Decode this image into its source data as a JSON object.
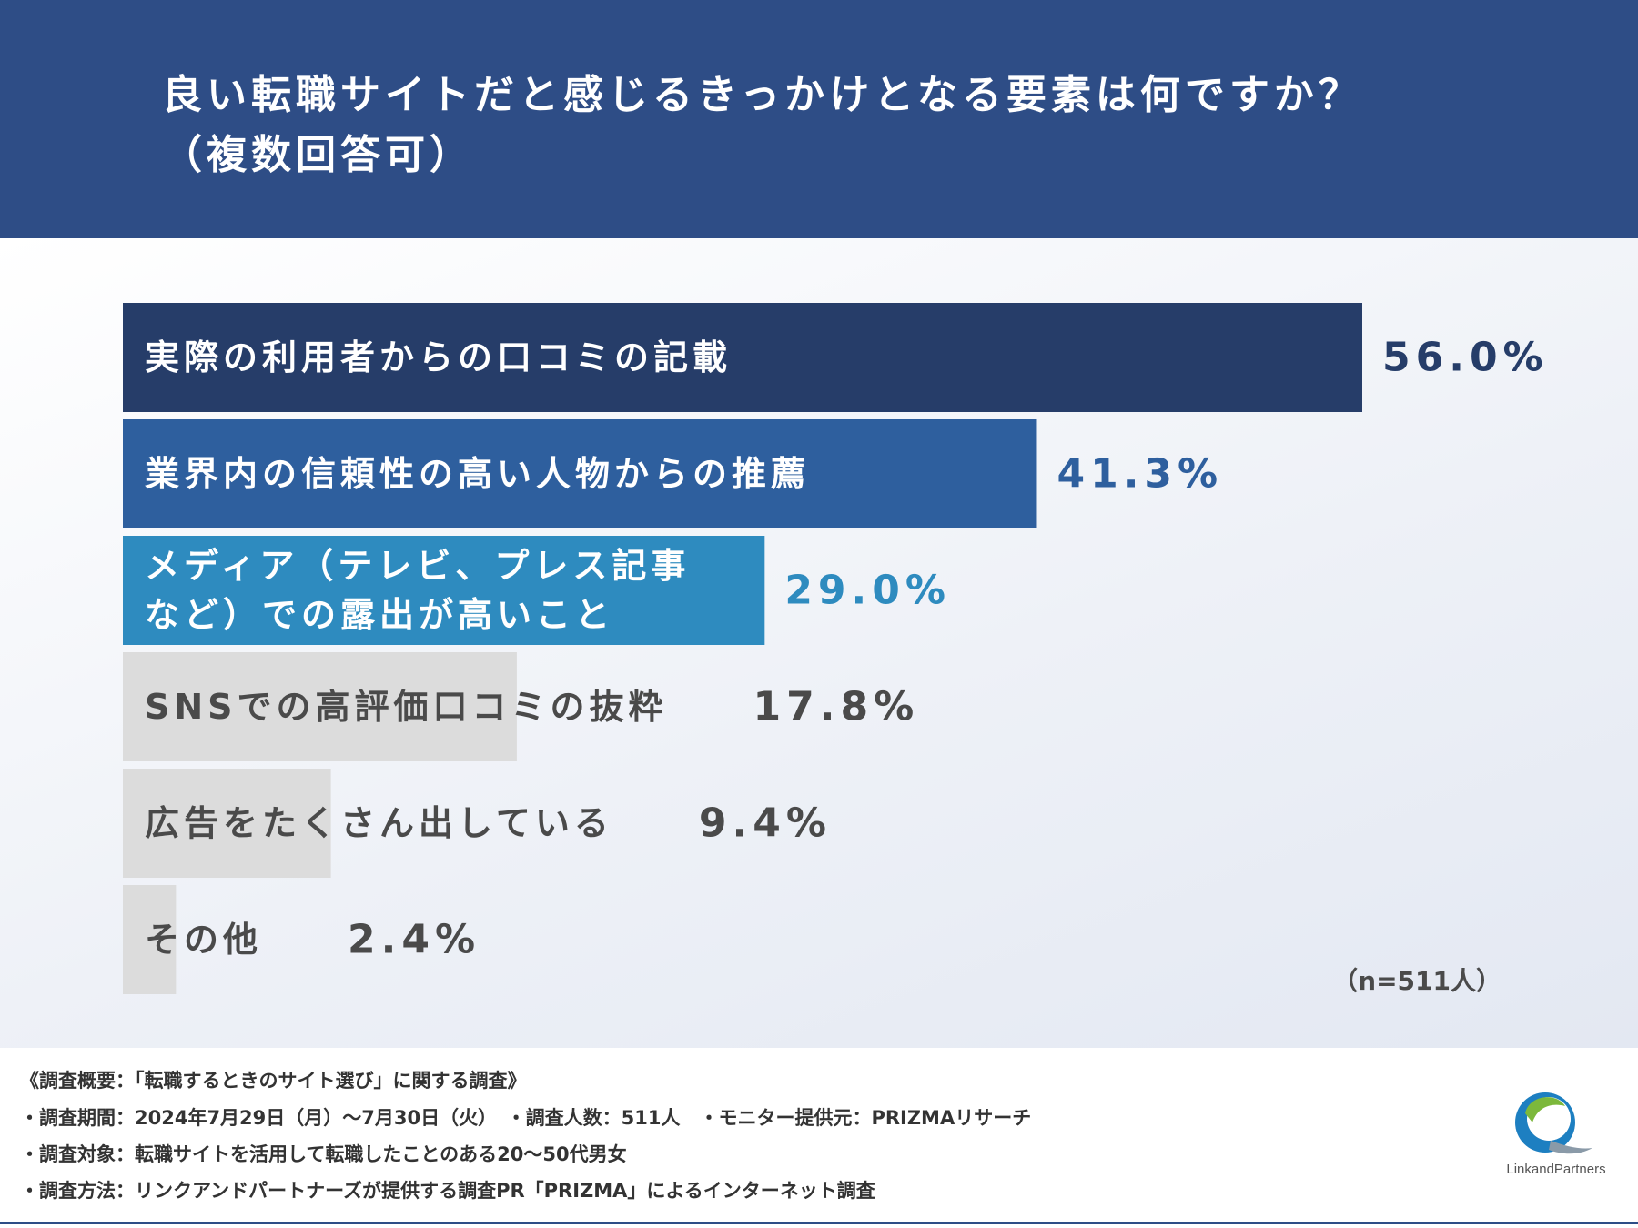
{
  "header": {
    "title": "良い転職サイトだと感じるきっかけとなる要素は何ですか？\n（複数回答可）"
  },
  "chart_data": {
    "type": "bar",
    "orientation": "horizontal",
    "categories": [
      [
        "実際の利用者からの口コミの記載"
      ],
      [
        "業界内の信頼性の高い人物からの推薦"
      ],
      [
        "メディア（テレビ、プレス記事",
        "など）での露出が高いこと"
      ],
      [
        "SNSでの高評価口コミの抜粋"
      ],
      [
        "広告をたくさん出している"
      ],
      [
        "その他"
      ]
    ],
    "values": [
      56.0,
      41.3,
      29.0,
      17.8,
      9.4,
      2.4
    ],
    "value_labels": [
      "56.0%",
      "41.3%",
      "29.0%",
      "17.8%",
      "9.4%",
      "2.4%"
    ],
    "bar_colors": [
      "#263d69",
      "#2e5f9e",
      "#2e8bbf",
      "#dcdcdc",
      "#dcdcdc",
      "#dcdcdc"
    ],
    "label_colors": [
      "#ffffff",
      "#ffffff",
      "#ffffff",
      "#4a4a4a",
      "#4a4a4a",
      "#4a4a4a"
    ],
    "value_colors": [
      "#263d69",
      "#2e5f9e",
      "#2e8bbf",
      "#4a4a4a",
      "#4a4a4a",
      "#4a4a4a"
    ],
    "xlim": [
      0,
      56.0
    ],
    "legend": "none",
    "grid": false,
    "unit": "%"
  },
  "sample": "（n=511人）",
  "footer": {
    "line1": "《調査概要：「転職するときのサイト選び」に関する調査》",
    "line2": "・調査期間：2024年7月29日（月）～7月30日（火）　・調査人数：511人　・モニター提供元：PRIZMAリサーチ",
    "line3": "・調査対象：転職サイトを活用して転職したことのある20～50代男女",
    "line4": "・調査方法：リンクアンドパートナーズが提供する調査PR「PRIZMA」によるインターネット調査"
  },
  "logo": {
    "text": "LinkandPartners",
    "colors": {
      "green": "#7cb83b",
      "blue": "#1d7fc1"
    }
  }
}
